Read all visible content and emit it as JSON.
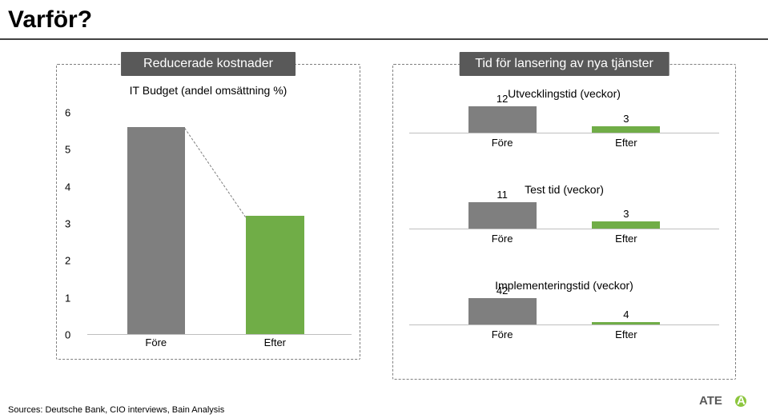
{
  "title": "Varför?",
  "colors": {
    "grey": "#7f7f7f",
    "green": "#70ad47",
    "banner": "#595959",
    "dash": "#7f7f7f",
    "axis": "#bfbfbf",
    "bg": "#ffffff",
    "text": "#000000",
    "logo_green": "#8cc63e",
    "logo_text": "#595959"
  },
  "left_panel": {
    "banner": "Reducerade kostnader",
    "chart": {
      "type": "bar",
      "title": "IT Budget (andel omsättning %)",
      "ylim": [
        0,
        6
      ],
      "ytick_step": 1,
      "yticks": [
        0,
        1,
        2,
        3,
        4,
        5,
        6
      ],
      "bars": [
        {
          "label": "Före",
          "value": 5.6,
          "color": "grey"
        },
        {
          "label": "Efter",
          "value": 3.2,
          "color": "green"
        }
      ],
      "callout_from_bar": 0,
      "callout_to_bar": 1
    }
  },
  "right_panel": {
    "banner": "Tid för lansering av nya tjänster",
    "charts": [
      {
        "type": "bar",
        "title": "Utvecklingstid (veckor)",
        "bars": [
          {
            "label": "Före",
            "value": 12,
            "color": "grey"
          },
          {
            "label": "Efter",
            "value": 3,
            "color": "green"
          }
        ],
        "max": 12
      },
      {
        "type": "bar",
        "title": "Test tid (veckor)",
        "bars": [
          {
            "label": "Före",
            "value": 11,
            "color": "grey"
          },
          {
            "label": "Efter",
            "value": 3,
            "color": "green"
          }
        ],
        "max": 11
      },
      {
        "type": "bar",
        "title": "Implementeringstid (veckor)",
        "bars": [
          {
            "label": "Före",
            "value": 42,
            "color": "grey"
          },
          {
            "label": "Efter",
            "value": 4,
            "color": "green"
          }
        ],
        "max": 42
      }
    ]
  },
  "source": "Sources: Deutsche Bank, CIO interviews, Bain Analysis",
  "logo_text": "ATEA"
}
